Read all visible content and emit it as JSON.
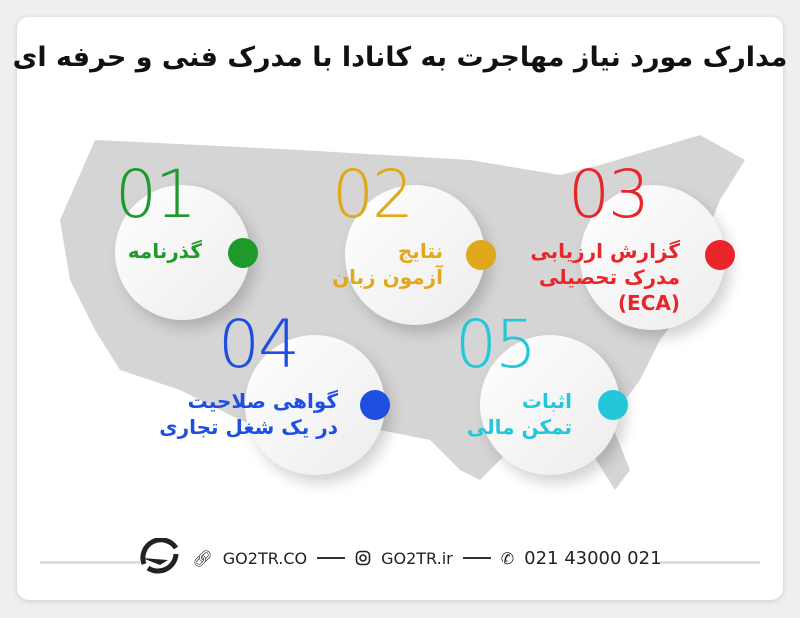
{
  "title": "مدارک مورد نیاز مهاجرت به کانادا با مدرک فنی و حرفه ای",
  "items": [
    {
      "number": "01",
      "label": [
        "گذرنامه"
      ],
      "color": "#1e9a2a"
    },
    {
      "number": "02",
      "label": [
        "نتایج",
        "آزمون زبان"
      ],
      "color": "#e0a81a"
    },
    {
      "number": "03",
      "label": [
        "گزارش ارزیابی",
        "مدرک تحصیلی",
        "(ECA)"
      ],
      "color": "#e8262a"
    },
    {
      "number": "04",
      "label": [
        "گواهی صلاحیت",
        "در یک شغل تجاری"
      ],
      "color": "#1f4fe0"
    },
    {
      "number": "05",
      "label": [
        "اثبات",
        "تمکن مالی"
      ],
      "color": "#22c8d8"
    }
  ],
  "footer": {
    "website": "GO2TR.CO",
    "instagram": "GO2TR.ir",
    "phone": "021 43000 021"
  }
}
